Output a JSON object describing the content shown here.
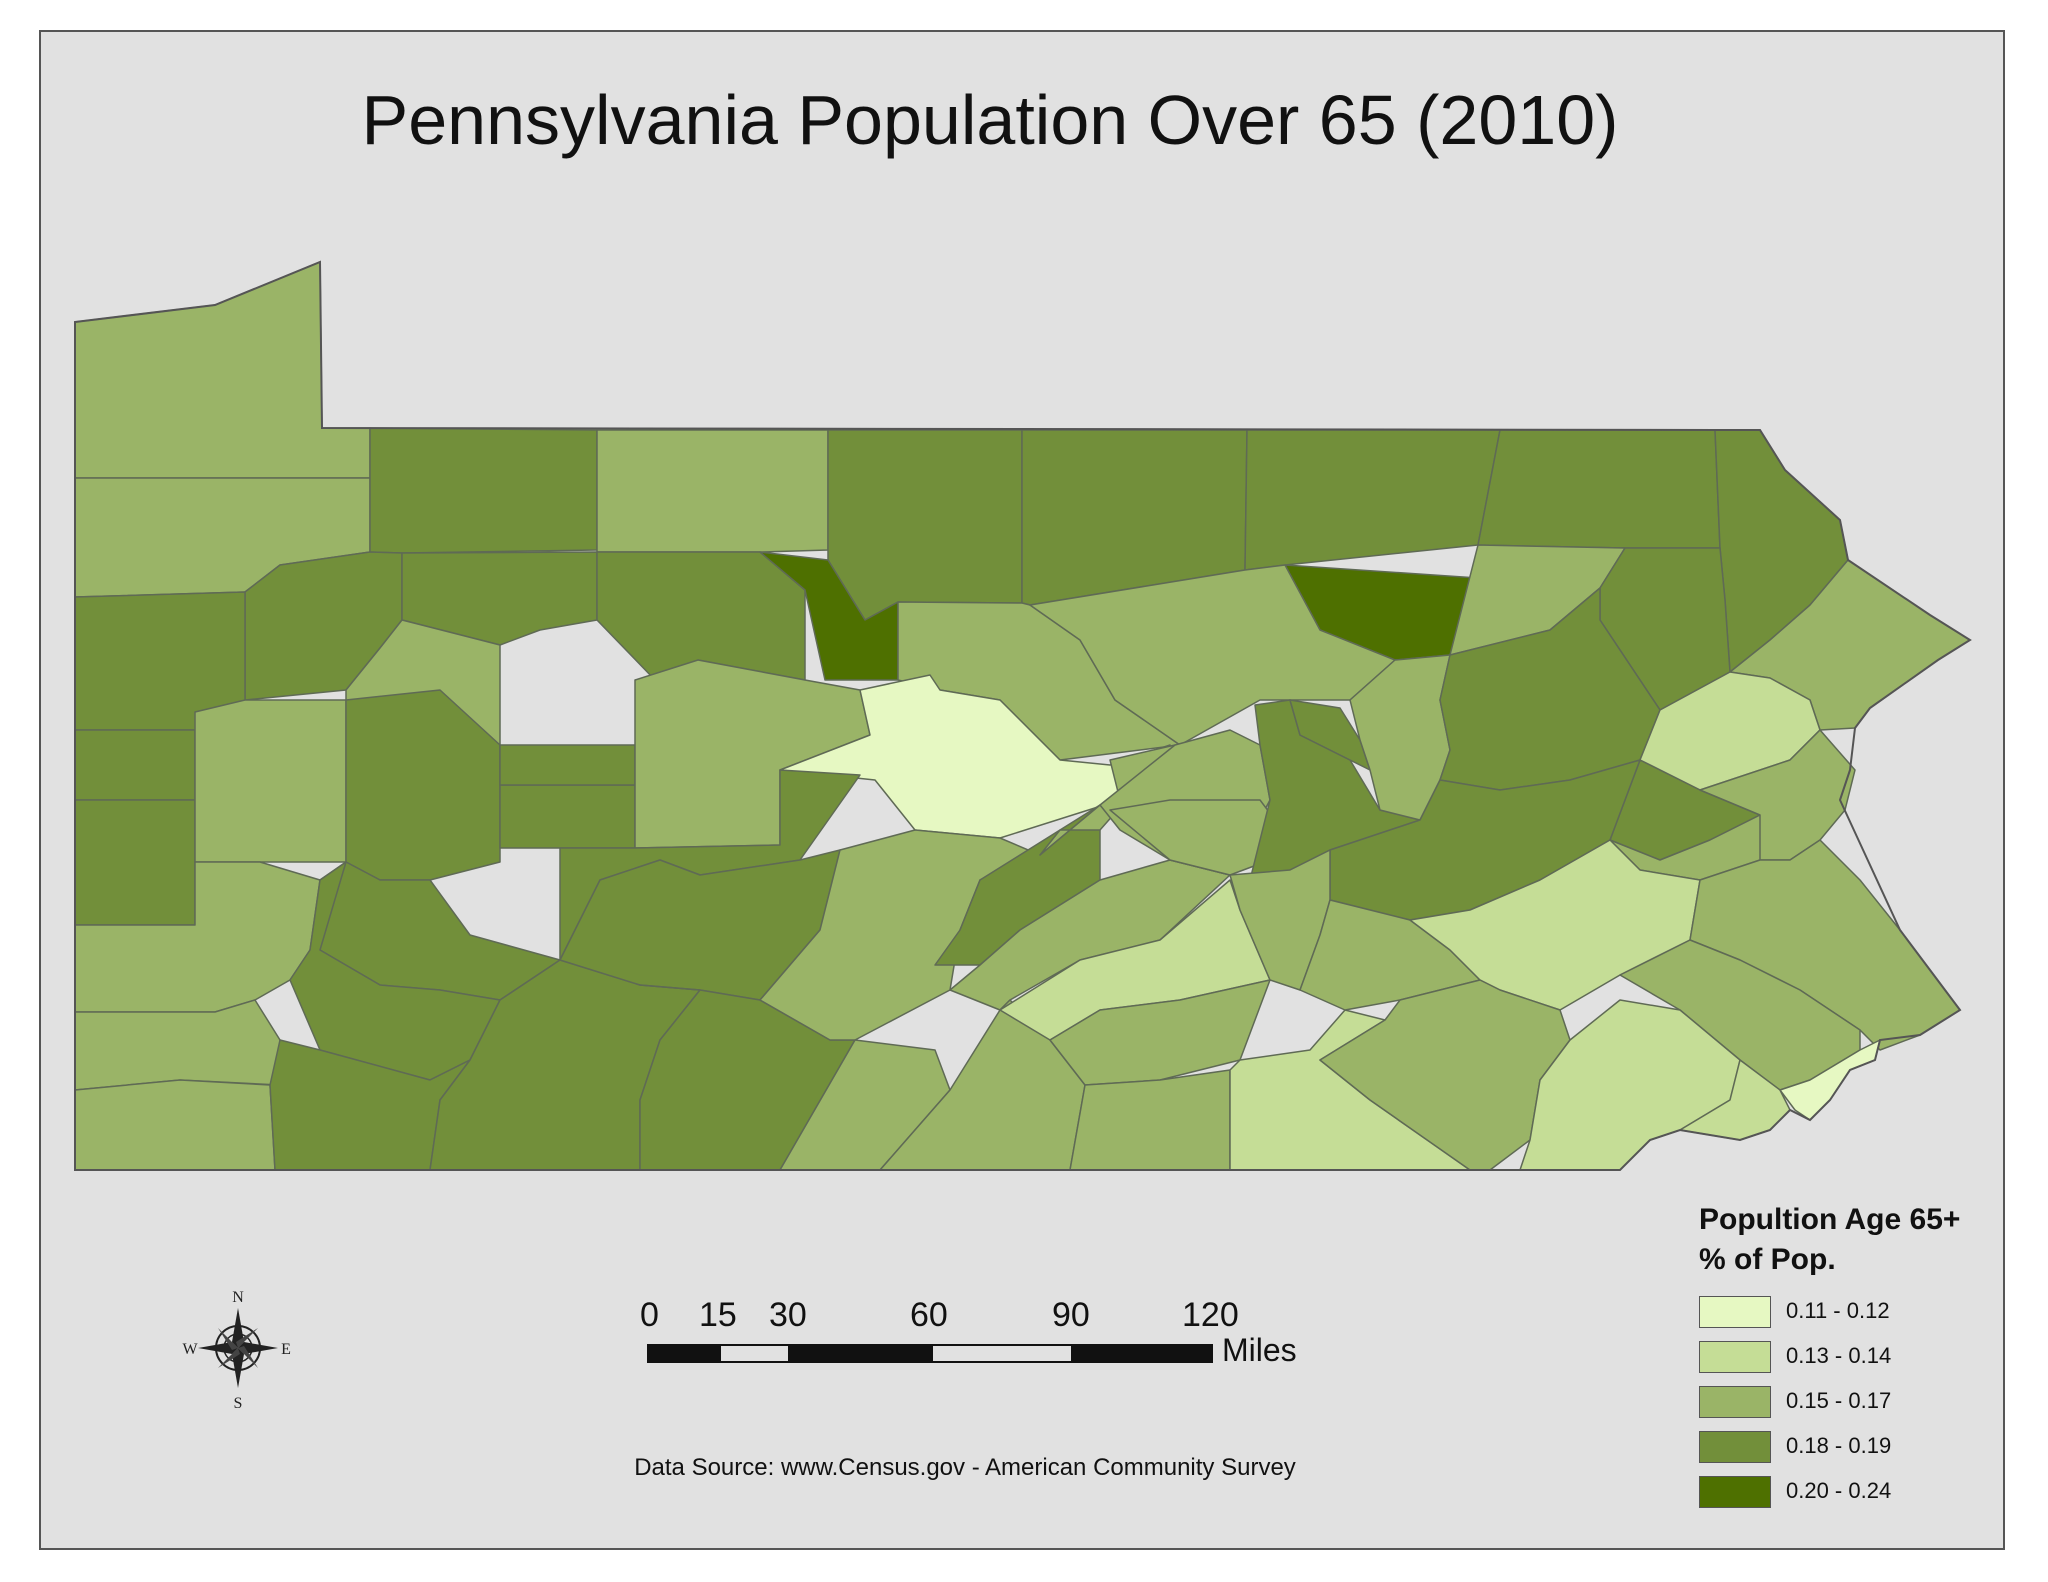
{
  "map": {
    "title": "Pennsylvania Population Over 65 (2010)",
    "data_source": "Data Source: www.Census.gov - American Community Survey"
  },
  "legend": {
    "title_line1": "Popultion Age 65+",
    "title_line2": "% of Pop.",
    "classes": [
      {
        "label": "0.11 - 0.12",
        "color": "#e6f8c2"
      },
      {
        "label": "0.13 - 0.14",
        "color": "#c5dd96"
      },
      {
        "label": "0.15 - 0.17",
        "color": "#9ab467"
      },
      {
        "label": "0.18 - 0.19",
        "color": "#728f3a"
      },
      {
        "label": "0.20 - 0.24",
        "color": "#4e7000"
      }
    ]
  },
  "scale_bar": {
    "ticks": [
      "0",
      "15",
      "30",
      "60",
      "90",
      "120"
    ],
    "unit": "Miles"
  },
  "north_arrow": {
    "north": "N",
    "south": "S",
    "east": "E",
    "west": "W"
  },
  "colors": {
    "background": "#e1e1e1",
    "county_border": "#5f6a55"
  }
}
